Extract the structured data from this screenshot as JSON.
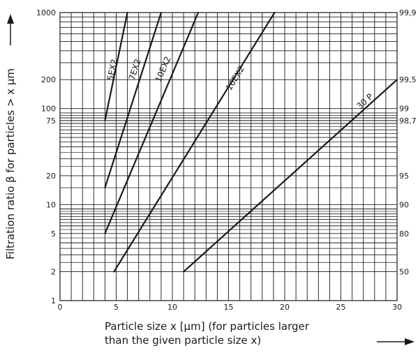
{
  "chart_data": {
    "type": "line",
    "x_axis": {
      "label_line1": "Particle size x [µm] (for particles larger",
      "label_line2": "than the given particle size x)",
      "range": [
        0,
        30
      ],
      "ticks": [
        "0",
        "5",
        "10",
        "15",
        "20",
        "25",
        "30"
      ],
      "tick_values": [
        0,
        5,
        10,
        15,
        20,
        25,
        30
      ]
    },
    "y_axis": {
      "label": "Filtration ratio β for particles > x µm",
      "scale": "log",
      "range": [
        1,
        1000
      ],
      "ticks": [
        "1",
        "2",
        "5",
        "10",
        "20",
        "75",
        "100",
        "200",
        "1000"
      ],
      "tick_values": [
        1,
        2,
        5,
        10,
        20,
        75,
        100,
        200,
        1000
      ]
    },
    "y2_axis": {
      "ticks": [
        "50",
        "80",
        "90",
        "95",
        "98,7",
        "99",
        "99,5",
        "99,9"
      ],
      "tick_values": [
        2,
        5,
        10,
        20,
        75,
        100,
        200,
        1000
      ]
    },
    "grid": true,
    "series": [
      {
        "name": "5EX2",
        "x": [
          4,
          6
        ],
        "y": [
          75,
          1000
        ],
        "label_pos": [
          4.9,
          250
        ]
      },
      {
        "name": "7EX2",
        "x": [
          4,
          9
        ],
        "y": [
          15,
          1000
        ],
        "label_pos": [
          6.9,
          250
        ]
      },
      {
        "name": "10EX2",
        "x": [
          4,
          12.3
        ],
        "y": [
          5,
          1000
        ],
        "label_pos": [
          9.4,
          250
        ]
      },
      {
        "name": "16EX2",
        "x": [
          4.8,
          19.1
        ],
        "y": [
          2,
          1000
        ],
        "label_pos": [
          15.8,
          200
        ]
      },
      {
        "name": "30 P",
        "x": [
          11,
          30
        ],
        "y": [
          2,
          200
        ],
        "label_pos": [
          27.3,
          113
        ]
      }
    ]
  }
}
